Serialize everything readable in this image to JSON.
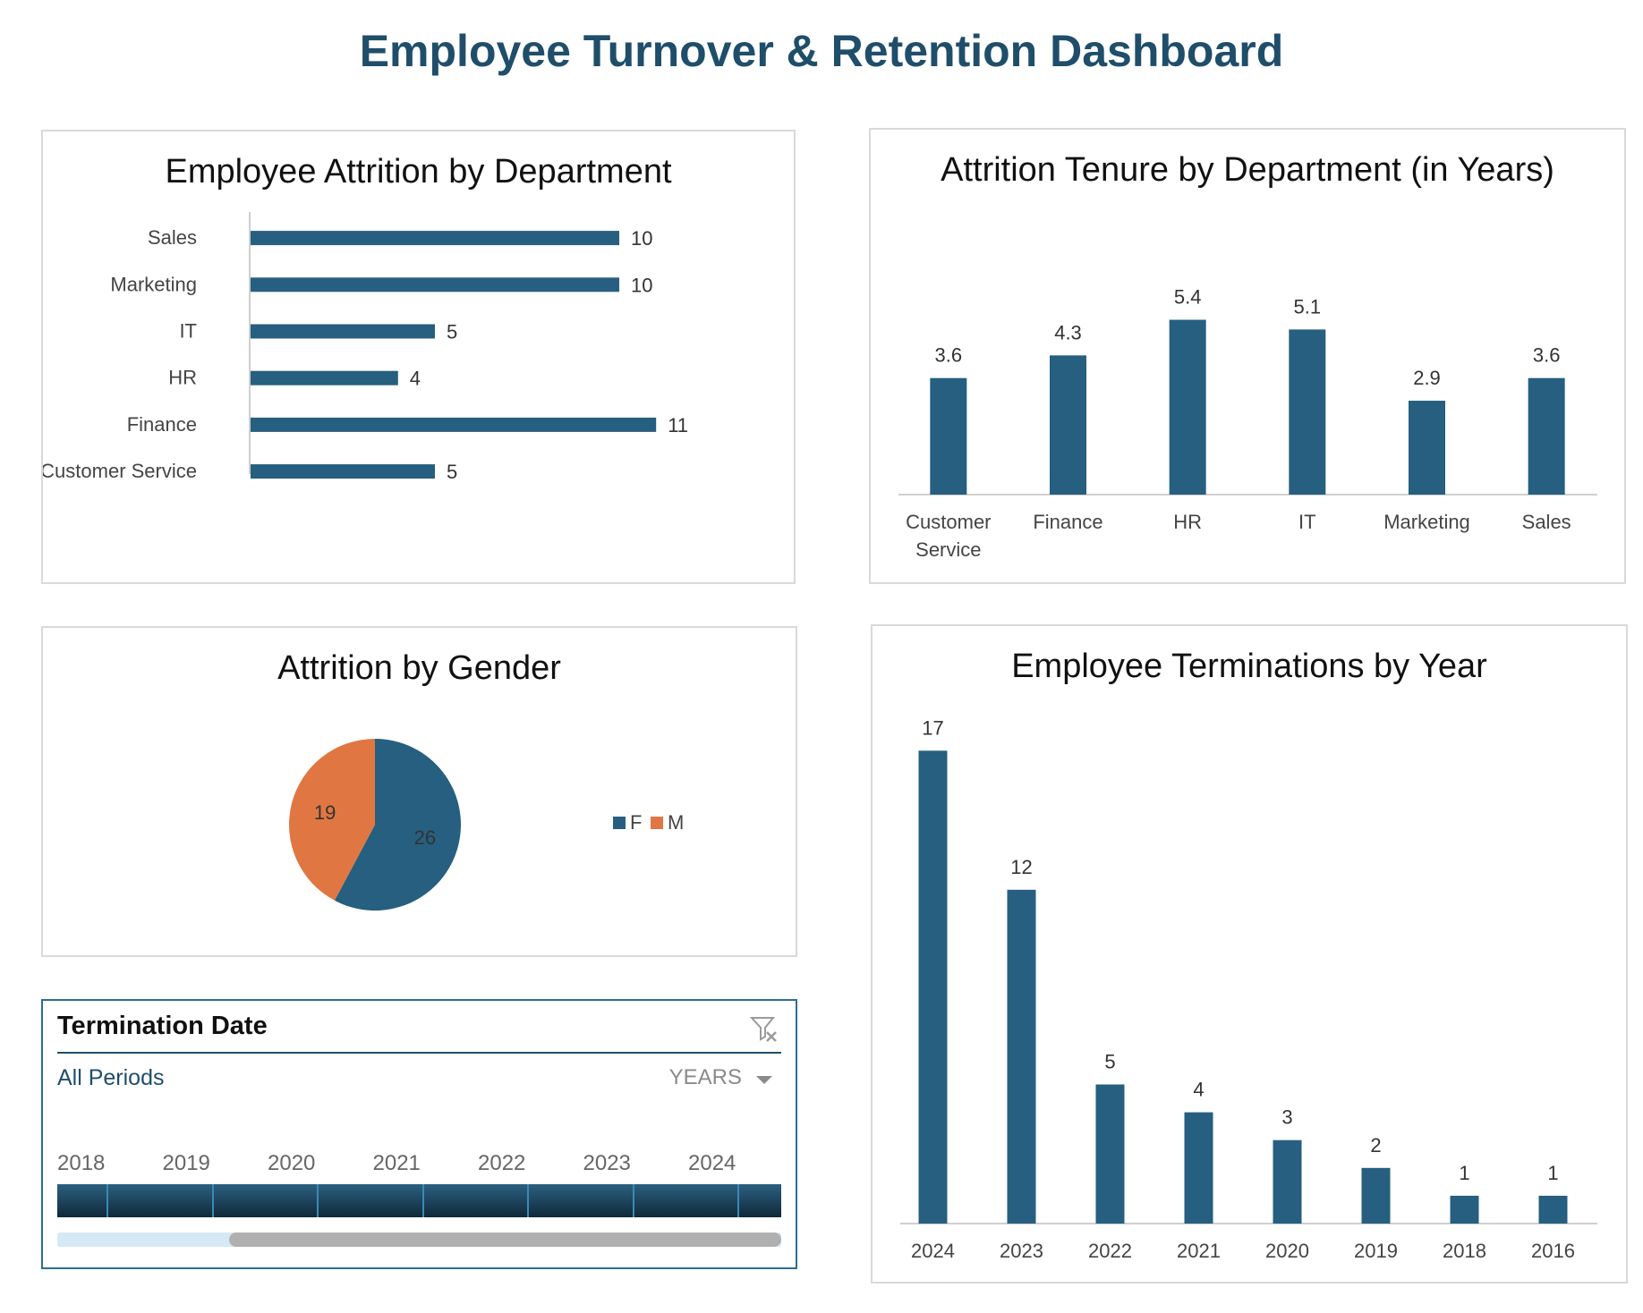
{
  "dashboard": {
    "title": "Employee Turnover & Retention Dashboard"
  },
  "colors": {
    "primary": "#265f7f",
    "accent": "#e07742",
    "title": "#1f4e6b"
  },
  "chart_data": [
    {
      "id": "attrition-by-department",
      "type": "bar",
      "orientation": "horizontal",
      "title": "Employee Attrition  by Department",
      "categories": [
        "Sales",
        "Marketing",
        "IT",
        "HR",
        "Finance",
        "Customer Service"
      ],
      "values": [
        10,
        10,
        5,
        4,
        11,
        5
      ],
      "data_labels": true,
      "grid": false
    },
    {
      "id": "tenure-by-department",
      "type": "bar",
      "title": "Attrition Tenure by Department (in Years)",
      "categories": [
        "Customer Service",
        "Finance",
        "HR",
        "IT",
        "Marketing",
        "Sales"
      ],
      "category_lines": [
        [
          "Customer",
          "Service"
        ],
        [
          "Finance"
        ],
        [
          "HR"
        ],
        [
          "IT"
        ],
        [
          "Marketing"
        ],
        [
          "Sales"
        ]
      ],
      "values": [
        3.6,
        4.3,
        5.4,
        5.1,
        2.9,
        3.6
      ],
      "data_labels": true,
      "grid": false
    },
    {
      "id": "attrition-by-gender",
      "type": "pie",
      "title": "Attrition by Gender",
      "categories": [
        "F",
        "M"
      ],
      "values": [
        26,
        19
      ],
      "legend": "right",
      "data_labels": true
    },
    {
      "id": "terminations-by-year",
      "type": "bar",
      "title": "Employee Terminations by Year",
      "categories": [
        "2024",
        "2023",
        "2022",
        "2021",
        "2020",
        "2019",
        "2018",
        "2016"
      ],
      "values": [
        17,
        12,
        5,
        4,
        3,
        2,
        1,
        1
      ],
      "data_labels": true,
      "grid": false
    }
  ],
  "slicer": {
    "title": "Termination Date",
    "period": "All Periods",
    "level": "YEARS",
    "years": [
      "2018",
      "2019",
      "2020",
      "2021",
      "2022",
      "2023",
      "2024"
    ]
  }
}
